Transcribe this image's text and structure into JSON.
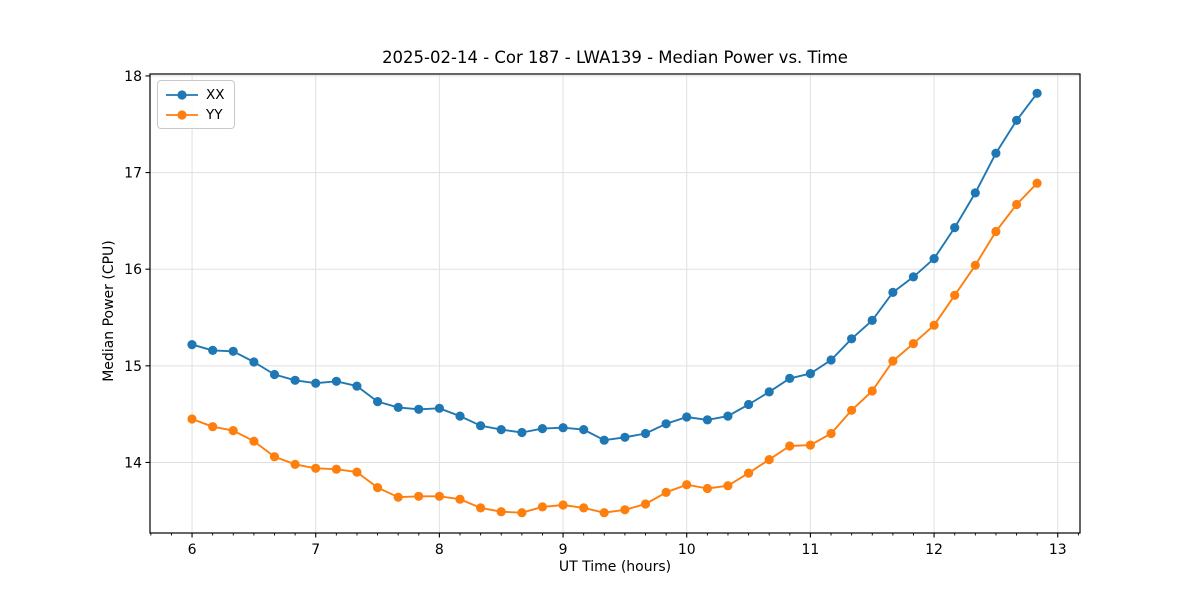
{
  "figure": {
    "title": "2025-02-14 - Cor 187 - LWA139 - Median Power vs. Time",
    "xlabel": "UT Time (hours)",
    "ylabel": "Median Power (CPU)"
  },
  "chart_data": {
    "type": "line",
    "title": "2025-02-14 - Cor 187 - LWA139 - Median Power vs. Time",
    "xlabel": "UT Time (hours)",
    "ylabel": "Median Power (CPU)",
    "xlim": [
      5.66,
      13.18
    ],
    "ylim": [
      13.27,
      18.02
    ],
    "xticks": [
      6,
      7,
      8,
      9,
      10,
      11,
      12,
      13
    ],
    "yticks": [
      14,
      15,
      16,
      17,
      18
    ],
    "minor_xtick_step": 0.16667,
    "grid": true,
    "grid_color": "#e0e0e0",
    "legend_position": "upper left",
    "marker": "o",
    "x": [
      6.0,
      6.167,
      6.333,
      6.5,
      6.667,
      6.833,
      7.0,
      7.167,
      7.333,
      7.5,
      7.667,
      7.833,
      8.0,
      8.167,
      8.333,
      8.5,
      8.667,
      8.833,
      9.0,
      9.167,
      9.333,
      9.5,
      9.667,
      9.833,
      10.0,
      10.167,
      10.333,
      10.5,
      10.667,
      10.833,
      11.0,
      11.167,
      11.333,
      11.5,
      11.667,
      11.833,
      12.0,
      12.167,
      12.333,
      12.5,
      12.667,
      12.833
    ],
    "series": [
      {
        "name": "XX",
        "color": "#1f77b4",
        "values": [
          15.22,
          15.16,
          15.15,
          15.04,
          14.91,
          14.85,
          14.82,
          14.84,
          14.79,
          14.63,
          14.57,
          14.55,
          14.56,
          14.48,
          14.38,
          14.34,
          14.31,
          14.35,
          14.36,
          14.34,
          14.23,
          14.26,
          14.3,
          14.4,
          14.47,
          14.44,
          14.48,
          14.6,
          14.73,
          14.87,
          14.92,
          15.06,
          15.28,
          15.47,
          15.76,
          15.92,
          16.11,
          16.43,
          16.79,
          17.2,
          17.54,
          17.82
        ]
      },
      {
        "name": "YY",
        "color": "#ff7f0e",
        "values": [
          14.45,
          14.37,
          14.33,
          14.22,
          14.06,
          13.98,
          13.94,
          13.93,
          13.9,
          13.74,
          13.64,
          13.65,
          13.65,
          13.62,
          13.53,
          13.49,
          13.48,
          13.54,
          13.56,
          13.53,
          13.48,
          13.51,
          13.57,
          13.69,
          13.77,
          13.73,
          13.76,
          13.89,
          14.03,
          14.17,
          14.18,
          14.3,
          14.54,
          14.74,
          15.05,
          15.23,
          15.42,
          15.73,
          16.04,
          16.39,
          16.67,
          16.89
        ]
      }
    ]
  }
}
